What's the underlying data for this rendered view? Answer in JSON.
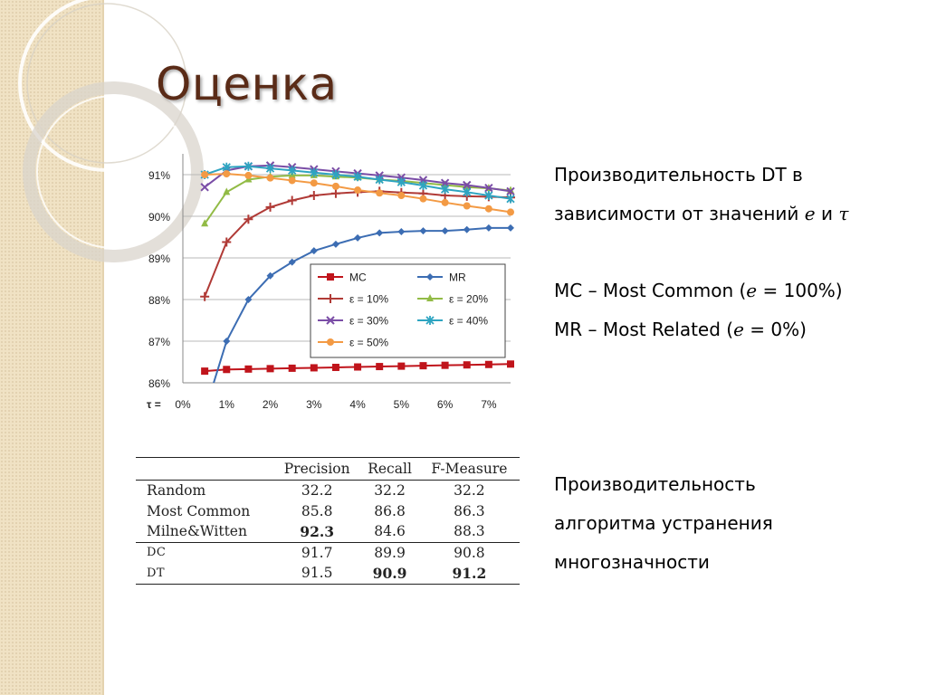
{
  "slide": {
    "title": "Оценка",
    "description1": {
      "line1": "Производительность DT в",
      "line2_prefix": "зависимости от значений ",
      "line2_e": "e",
      "line2_and": " и ",
      "line2_tau": "τ"
    },
    "legend_notes": {
      "mc_prefix": "MC – Most Common (",
      "mc_var": "e",
      "mc_suffix": " = 100%)",
      "mr_prefix": "MR – Most Related (",
      "mr_var": "e",
      "mr_suffix": " = 0%)"
    },
    "description2": {
      "line1": "Производительность",
      "line2": "алгоритма устранения",
      "line3": "многозначности"
    }
  },
  "chart_data": {
    "type": "line",
    "x_prefix_label": "τ =",
    "x_ticks": [
      "0%",
      "1%",
      "2%",
      "3%",
      "4%",
      "5%",
      "6%",
      "7%"
    ],
    "x": [
      0.5,
      1,
      1.5,
      2,
      2.5,
      3,
      3.5,
      4,
      4.5,
      5,
      5.5,
      6,
      6.5,
      7,
      7.5
    ],
    "y_ticks": [
      "86%",
      "87%",
      "88%",
      "89%",
      "90%",
      "91%"
    ],
    "ylim": [
      86,
      91.5
    ],
    "xlim": [
      0,
      7.5
    ],
    "grid": true,
    "legend_position": "center-right",
    "series": [
      {
        "name": "MC",
        "color": "#c0141b",
        "marker": "square",
        "values": [
          86.28,
          86.32,
          86.33,
          86.34,
          86.35,
          86.36,
          86.37,
          86.38,
          86.39,
          86.4,
          86.41,
          86.42,
          86.43,
          86.44,
          86.45
        ]
      },
      {
        "name": "MR",
        "color": "#3c6db3",
        "marker": "diamond",
        "values": [
          85.3,
          87.0,
          88.0,
          88.57,
          88.9,
          89.17,
          89.33,
          89.48,
          89.6,
          89.63,
          89.65,
          89.65,
          89.68,
          89.72,
          89.72
        ]
      },
      {
        "name": "ε = 10%",
        "color": "#b03a36",
        "marker": "plus",
        "values": [
          88.07,
          89.38,
          89.93,
          90.22,
          90.38,
          90.5,
          90.55,
          90.58,
          90.6,
          90.57,
          90.55,
          90.5,
          90.48,
          90.47,
          90.45
        ]
      },
      {
        "name": "ε = 20%",
        "color": "#92bb46",
        "marker": "triangle",
        "values": [
          89.82,
          90.58,
          90.88,
          90.95,
          90.98,
          90.98,
          90.95,
          90.93,
          90.88,
          90.85,
          90.8,
          90.75,
          90.7,
          90.67,
          90.62
        ]
      },
      {
        "name": "ε = 30%",
        "color": "#7a4da6",
        "marker": "x",
        "values": [
          90.7,
          91.1,
          91.2,
          91.22,
          91.18,
          91.13,
          91.08,
          91.03,
          90.98,
          90.93,
          90.87,
          90.8,
          90.75,
          90.68,
          90.6
        ]
      },
      {
        "name": "ε = 40%",
        "color": "#2ea4c1",
        "marker": "star",
        "values": [
          91.0,
          91.18,
          91.2,
          91.15,
          91.1,
          91.05,
          91.0,
          90.95,
          90.88,
          90.82,
          90.74,
          90.65,
          90.58,
          90.5,
          90.42
        ]
      },
      {
        "name": "ε = 50%",
        "color": "#f39a44",
        "marker": "circle",
        "values": [
          91.0,
          91.02,
          90.98,
          90.92,
          90.86,
          90.8,
          90.72,
          90.63,
          90.56,
          90.5,
          90.42,
          90.33,
          90.25,
          90.18,
          90.1
        ]
      }
    ]
  },
  "results_table": {
    "headers": [
      "",
      "Precision",
      "Recall",
      "F-Measure"
    ],
    "rows": [
      {
        "method": "Random",
        "precision": "32.2",
        "recall": "32.2",
        "fmeasure": "32.2"
      },
      {
        "method": "Most Common",
        "precision": "85.8",
        "recall": "86.8",
        "fmeasure": "86.3"
      },
      {
        "method": "Milne&Witten",
        "precision": "92.3",
        "recall": "84.6",
        "fmeasure": "88.3"
      },
      {
        "method": "DC",
        "precision": "91.7",
        "recall": "89.9",
        "fmeasure": "90.8"
      },
      {
        "method": "DT",
        "precision": "91.5",
        "recall": "90.9",
        "fmeasure": "91.2"
      }
    ]
  }
}
